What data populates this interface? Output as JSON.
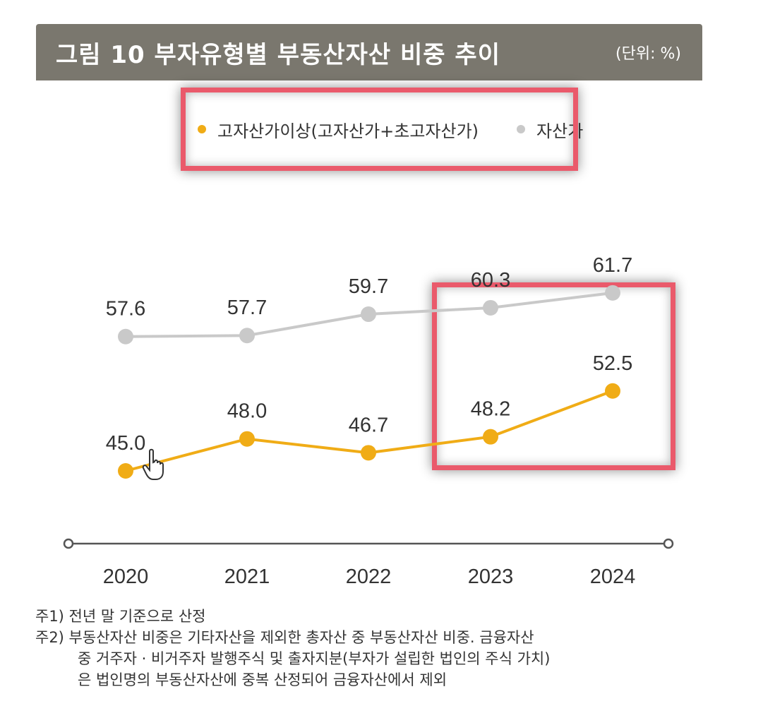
{
  "header": {
    "title": "그림 10  부자유형별 부동산자산 비중 추이",
    "unit": "(단위: %)"
  },
  "colors": {
    "title_bg": "#7a776e",
    "series_high": "#f0ac16",
    "series_rich": "#c9c9c9",
    "highlight": "#ea5a6b"
  },
  "chart_data": {
    "type": "line",
    "title": "그림 10  부자유형별 부동산자산 비중 추이",
    "unit": "(단위: %)",
    "x": [
      "2020",
      "2021",
      "2022",
      "2023",
      "2024"
    ],
    "series": [
      {
        "name": "고자산가이상(고자산가+초고자산가)",
        "values": [
          45.0,
          48.0,
          46.7,
          48.2,
          52.5
        ],
        "labels": [
          "45.0",
          "48.0",
          "46.7",
          "48.2",
          "52.5"
        ],
        "color": "#f0ac16"
      },
      {
        "name": "자산가",
        "values": [
          57.6,
          57.7,
          59.7,
          60.3,
          61.7
        ],
        "labels": [
          "57.6",
          "57.7",
          "59.7",
          "60.3",
          "61.7"
        ],
        "color": "#c9c9c9"
      }
    ],
    "legend_position": "top",
    "grid": false
  },
  "notes": [
    "주1) 전년 말 기준으로 산정",
    "주2) 부동산자산 비중은 기타자산을 제외한 총자산 중 부동산자산 비중. 금융자산",
    "중 거주자 · 비거주자 발행주식 및 출자지분(부자가 설립한 법인의 주식 가치)",
    "은 법인명의 부동산자산에 중복 산정되어 금융자산에서 제외"
  ]
}
